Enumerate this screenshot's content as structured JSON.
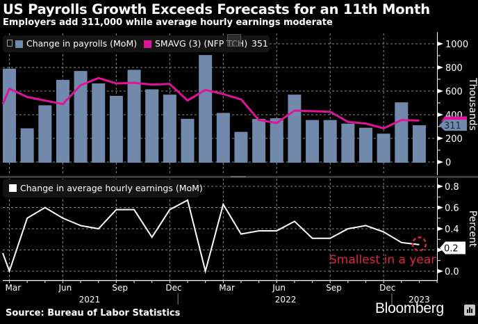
{
  "header": {
    "title": "US Payrolls Growth Exceeds Forecasts for an 11th Month",
    "subtitle": "Employers add 311,000 while average hourly earnings moderate"
  },
  "footer": {
    "source": "Source: Bureau of Labor Statistics",
    "brand": "Bloomberg"
  },
  "colors": {
    "bars": "#7189aa",
    "smavg": "#e0139b",
    "earnings": "#ffffff",
    "annotation": "#e0253f",
    "grid": "#8a8a8a"
  },
  "chart_data": [
    {
      "type": "bar",
      "panel": "top",
      "title": "US Payrolls Growth Exceeds Forecasts for an 11th Month",
      "categories": [
        "Mar 2021",
        "Apr 2021",
        "May 2021",
        "Jun 2021",
        "Jul 2021",
        "Aug 2021",
        "Sep 2021",
        "Oct 2021",
        "Nov 2021",
        "Dec 2021",
        "Jan 2022",
        "Feb 2022",
        "Mar 2022",
        "Apr 2022",
        "May 2022",
        "Jun 2022",
        "Jul 2022",
        "Aug 2022",
        "Sep 2022",
        "Oct 2022",
        "Nov 2022",
        "Dec 2022",
        "Jan 2023",
        "Feb 2023"
      ],
      "ylabel": "Thousands",
      "ylim": [
        -80,
        1030
      ],
      "yticks": [
        0,
        200,
        400,
        600,
        800,
        1000
      ],
      "grid": true,
      "legend_position": "top-left",
      "series": [
        {
          "name": "Change in payrolls (MoM)",
          "kind": "bar",
          "values": [
            790,
            285,
            480,
            695,
            770,
            665,
            560,
            780,
            615,
            570,
            365,
            905,
            415,
            255,
            365,
            370,
            570,
            355,
            355,
            325,
            290,
            240,
            505,
            311
          ],
          "last_value_label": "311"
        },
        {
          "name": "SMAVG (3) (NFP TCH)",
          "kind": "line",
          "legend_value": "351",
          "start_value": 490,
          "values": [
            620,
            550,
            520,
            490,
            650,
            710,
            665,
            670,
            655,
            660,
            520,
            610,
            575,
            530,
            355,
            330,
            435,
            430,
            425,
            340,
            325,
            285,
            355,
            351
          ],
          "last_value_label": "351"
        }
      ]
    },
    {
      "type": "line",
      "panel": "bottom",
      "categories": [
        "Mar 2021",
        "Apr 2021",
        "May 2021",
        "Jun 2021",
        "Jul 2021",
        "Aug 2021",
        "Sep 2021",
        "Oct 2021",
        "Nov 2021",
        "Dec 2021",
        "Jan 2022",
        "Feb 2022",
        "Mar 2022",
        "Apr 2022",
        "May 2022",
        "Jun 2022",
        "Jul 2022",
        "Aug 2022",
        "Sep 2022",
        "Oct 2022",
        "Nov 2022",
        "Dec 2022",
        "Jan 2023",
        "Feb 2023"
      ],
      "ylabel": "Percent",
      "ylim": [
        -0.12,
        0.88
      ],
      "yticks": [
        0.0,
        0.2,
        0.4,
        0.6,
        0.8
      ],
      "ytick_labels": [
        "0.0",
        "0.2",
        "0.4",
        "0.6",
        "0.8"
      ],
      "grid": true,
      "legend_position": "top-left",
      "series": [
        {
          "name": "Change in average hourly earnings (MoM)",
          "start_value": 0.17,
          "values": [
            0.0,
            0.5,
            0.6,
            0.5,
            0.43,
            0.4,
            0.58,
            0.58,
            0.32,
            0.58,
            0.67,
            0.0,
            0.63,
            0.35,
            0.38,
            0.38,
            0.47,
            0.31,
            0.31,
            0.4,
            0.43,
            0.37,
            0.27,
            0.25
          ],
          "last_value_label": "0.2"
        }
      ],
      "annotation": {
        "text": "Smallest in a year",
        "target": "Feb 2023"
      }
    }
  ],
  "xaxis": {
    "month_labels": [
      {
        "label": "Mar",
        "index": 0
      },
      {
        "label": "Jun",
        "index": 3
      },
      {
        "label": "Sep",
        "index": 6
      },
      {
        "label": "Dec",
        "index": 9
      },
      {
        "label": "Mar",
        "index": 12
      },
      {
        "label": "Jun",
        "index": 15
      },
      {
        "label": "Sep",
        "index": 18
      },
      {
        "label": "Dec",
        "index": 21
      }
    ],
    "year_labels": [
      {
        "label": "2021",
        "index": 4.5
      },
      {
        "label": "2022",
        "index": 15.5
      },
      {
        "label": "2023",
        "index": 23
      }
    ],
    "year_dividers": [
      9.5,
      21.5
    ]
  }
}
